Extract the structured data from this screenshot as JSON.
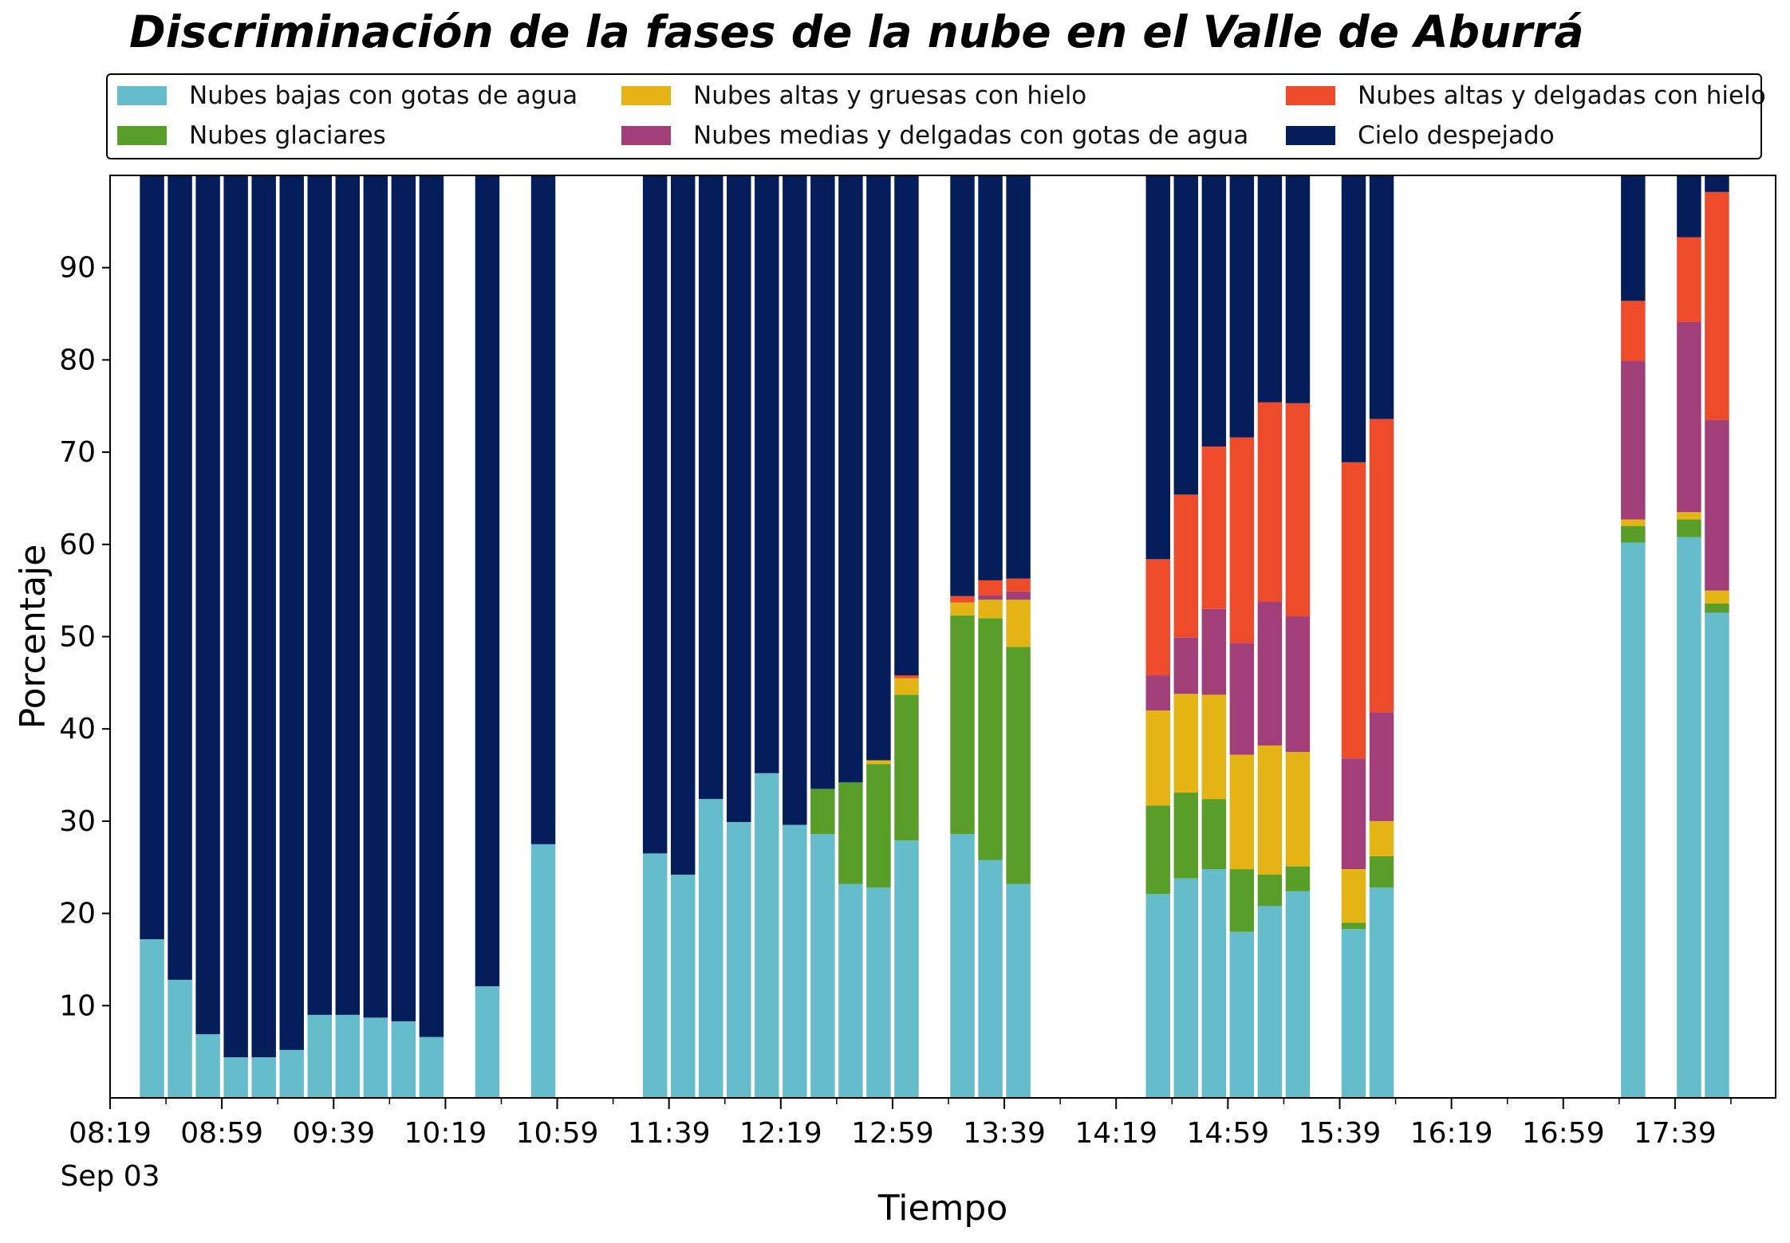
{
  "chart_data": {
    "type": "bar",
    "stacked": true,
    "title": "Discriminación de la fases de la nube en el Valle de Aburrá",
    "xlabel": "Tiempo",
    "ylabel": "Porcentaje",
    "ylim": [
      0,
      100
    ],
    "yticks": [
      10,
      20,
      30,
      40,
      50,
      60,
      70,
      80,
      90
    ],
    "x_tick_labels": [
      "08:19",
      "08:59",
      "09:39",
      "10:19",
      "10:59",
      "11:39",
      "12:19",
      "12:59",
      "13:39",
      "14:19",
      "14:59",
      "15:39",
      "16:19",
      "16:59",
      "17:39"
    ],
    "x_date_label": "Sep 03",
    "x_range": [
      "08:19",
      "18:15"
    ],
    "legend_position": "top",
    "x": [
      "08:34",
      "08:44",
      "08:54",
      "09:04",
      "09:14",
      "09:24",
      "09:34",
      "09:44",
      "09:54",
      "10:04",
      "10:14",
      "10:34",
      "10:54",
      "11:34",
      "11:44",
      "11:54",
      "12:04",
      "12:14",
      "12:24",
      "12:34",
      "12:44",
      "12:54",
      "13:04",
      "13:24",
      "13:34",
      "13:44",
      "14:34",
      "14:44",
      "14:54",
      "15:04",
      "15:14",
      "15:24",
      "15:44",
      "15:54",
      "17:24",
      "17:44",
      "17:54",
      "18:04"
    ],
    "series": [
      {
        "name": "Nubes bajas con gotas de agua",
        "color": "#65bccb",
        "values": [
          17.2,
          12.8,
          6.9,
          4.4,
          4.4,
          5.2,
          9.0,
          9.0,
          8.7,
          8.3,
          6.6,
          12.1,
          27.5,
          26.5,
          24.2,
          32.4,
          29.9,
          35.2,
          29.6,
          28.6,
          23.2,
          22.8,
          27.9,
          28.6,
          25.8,
          23.2,
          22.1,
          23.8,
          24.8,
          18.0,
          20.8,
          22.4,
          18.3,
          22.8,
          60.2,
          60.8,
          52.6,
          0
        ]
      },
      {
        "name": "Nubes glaciares",
        "color": "#5a9e2a",
        "values": [
          0,
          0,
          0,
          0,
          0,
          0,
          0,
          0,
          0,
          0,
          0,
          0,
          0,
          0,
          0,
          0,
          0,
          0,
          0,
          4.9,
          11.0,
          13.4,
          15.8,
          23.7,
          26.2,
          25.7,
          9.6,
          9.3,
          7.6,
          6.8,
          3.4,
          2.7,
          0.7,
          3.4,
          1.8,
          1.9,
          1.0,
          0
        ]
      },
      {
        "name": "Nubes altas y gruesas con hielo",
        "color": "#e3b413",
        "values": [
          0,
          0,
          0,
          0,
          0,
          0,
          0,
          0,
          0,
          0,
          0,
          0,
          0,
          0,
          0,
          0,
          0,
          0,
          0,
          0,
          0,
          0.4,
          1.8,
          1.4,
          2.0,
          5.1,
          10.3,
          10.7,
          11.3,
          12.4,
          14.0,
          12.4,
          5.8,
          3.8,
          0.7,
          0.8,
          1.4,
          0
        ]
      },
      {
        "name": "Nubes medias y delgadas con gotas de agua",
        "color": "#a23f79",
        "values": [
          0,
          0,
          0,
          0,
          0,
          0,
          0,
          0,
          0,
          0,
          0,
          0,
          0,
          0,
          0,
          0,
          0,
          0,
          0,
          0,
          0,
          0,
          0,
          0,
          0.5,
          0.9,
          3.8,
          6.1,
          9.3,
          12.1,
          15.6,
          14.7,
          12.0,
          11.8,
          17.2,
          20.6,
          18.5,
          0
        ]
      },
      {
        "name": "Nubes altas y delgadas con hielo",
        "color": "#ee4b2b",
        "values": [
          0,
          0,
          0,
          0,
          0,
          0,
          0,
          0,
          0,
          0,
          0,
          0,
          0,
          0,
          0,
          0,
          0,
          0,
          0,
          0,
          0,
          0,
          0.3,
          0.7,
          1.6,
          1.4,
          12.6,
          15.5,
          17.6,
          22.3,
          21.6,
          23.1,
          32.1,
          31.8,
          6.5,
          9.2,
          24.7,
          0
        ]
      },
      {
        "name": "Cielo despejado",
        "color": "#041e5c",
        "values": [
          82.8,
          87.2,
          93.1,
          95.6,
          95.6,
          94.8,
          91.0,
          91.0,
          91.3,
          91.7,
          93.4,
          87.9,
          72.5,
          73.5,
          75.8,
          67.6,
          70.1,
          64.8,
          70.4,
          66.5,
          65.8,
          63.4,
          54.2,
          45.6,
          43.9,
          43.7,
          41.6,
          34.6,
          29.4,
          28.4,
          24.6,
          24.7,
          31.1,
          26.4,
          13.6,
          6.7,
          1.8,
          0
        ]
      }
    ]
  }
}
